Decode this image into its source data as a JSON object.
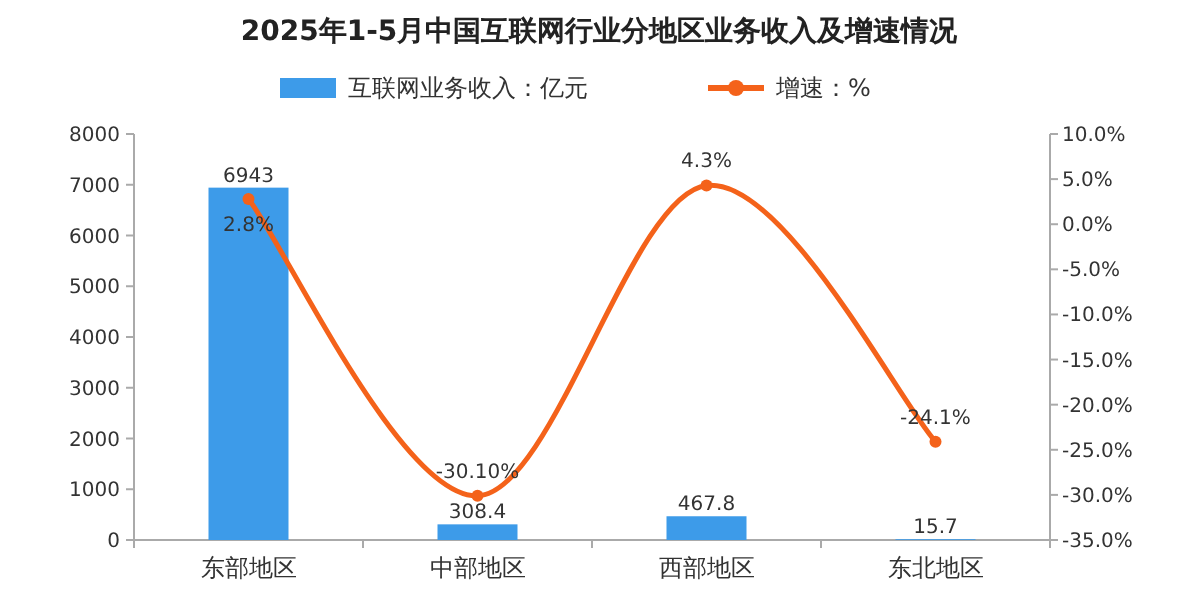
{
  "chart_data": {
    "type": "bar",
    "title": "2025年1-5月中国互联网行业分地区业务收入及增速情况",
    "categories": [
      "东部地区",
      "中部地区",
      "西部地区",
      "东北地区"
    ],
    "series": [
      {
        "name": "互联网业务收入：亿元",
        "color": "#3d9be9",
        "values": [
          6943,
          308.4,
          467.8,
          15.7
        ],
        "value_labels": [
          "6943",
          "308.4",
          "467.8",
          "15.7"
        ]
      },
      {
        "name": "增速：%",
        "type": "line",
        "axis": "y2",
        "color": "#f4621a",
        "marker": "circle",
        "values": [
          2.8,
          -30.1,
          4.3,
          -24.1
        ],
        "value_labels": [
          "2.8%",
          "-30.10%",
          "4.3%",
          "-24.1%"
        ]
      }
    ],
    "ylim": [
      0,
      8000
    ],
    "yticks": [
      0,
      1000,
      2000,
      3000,
      4000,
      5000,
      6000,
      7000,
      8000
    ],
    "y2lim": [
      -35,
      10
    ],
    "y2ticks": [
      {
        "value": -35,
        "label": "-35.0%"
      },
      {
        "value": -30,
        "label": "-30.0%"
      },
      {
        "value": -25,
        "label": "-25.0%"
      },
      {
        "value": -20,
        "label": "-20.0%"
      },
      {
        "value": -15,
        "label": "-15.0%"
      },
      {
        "value": -10,
        "label": "-10.0%"
      },
      {
        "value": -5,
        "label": "-5.0%"
      },
      {
        "value": 0,
        "label": "0.0%"
      },
      {
        "value": 5,
        "label": "5.0%"
      },
      {
        "value": 10,
        "label": "10.0%"
      }
    ],
    "legend": "top",
    "grid": false
  }
}
